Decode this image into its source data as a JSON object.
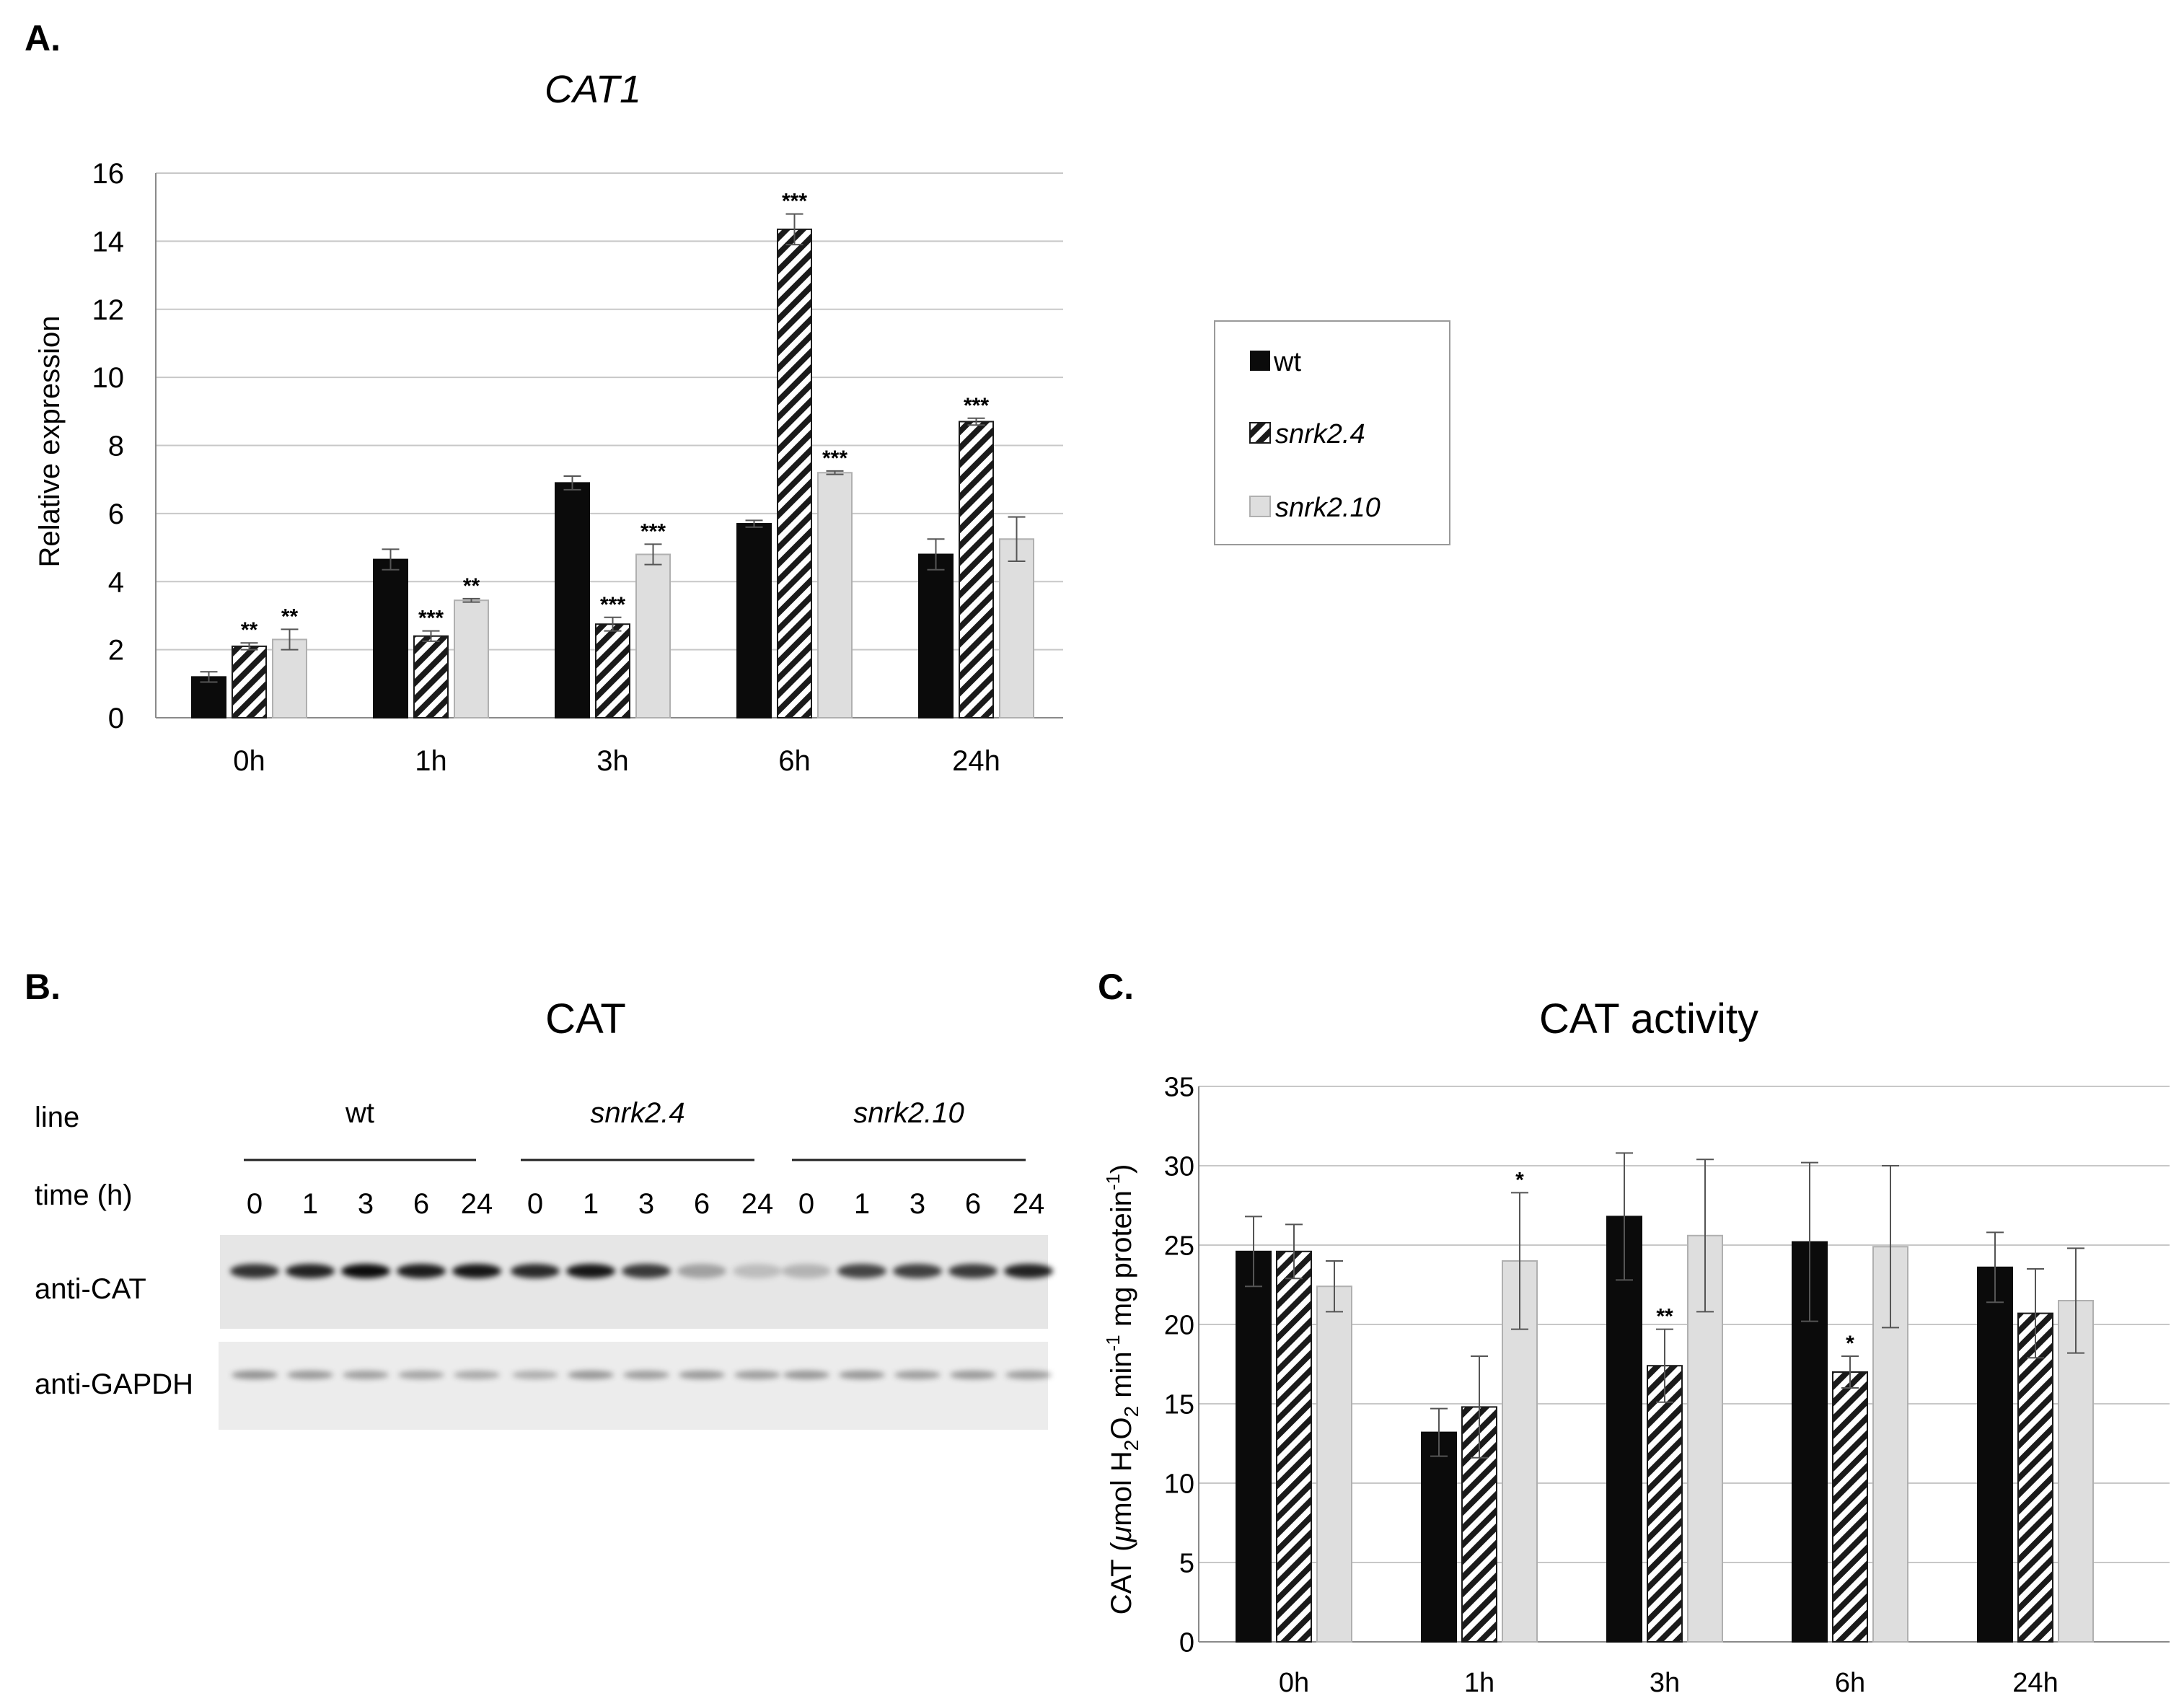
{
  "colors": {
    "wt": "#0b0b0b",
    "snrk24_stripe": "#1a1a1a",
    "snrk210": "#dedede",
    "grid": "#c8c8c8",
    "axis": "#8a8a8a",
    "blot_bg": "#e6e6e6"
  },
  "panels": {
    "a_label": "A.",
    "b_label": "B.",
    "c_label": "C."
  },
  "legend": {
    "items": [
      {
        "key": "wt",
        "label": "wt"
      },
      {
        "key": "snrk24",
        "label": "snrk2.4"
      },
      {
        "key": "snrk210",
        "label": "snrk2.10"
      }
    ]
  },
  "chart_data": [
    {
      "id": "A",
      "type": "bar",
      "title": "CAT1",
      "xlabel": "",
      "ylabel": "Relative expression",
      "ylim": [
        0,
        16
      ],
      "yticks": [
        0,
        2,
        4,
        6,
        8,
        10,
        12,
        14,
        16
      ],
      "categories": [
        "0h",
        "1h",
        "3h",
        "6h",
        "24h"
      ],
      "series": [
        {
          "name": "wt",
          "values": [
            1.2,
            4.65,
            6.9,
            5.7,
            4.8
          ],
          "errors": [
            0.15,
            0.3,
            0.2,
            0.1,
            0.45
          ],
          "sig": [
            "",
            "",
            "",
            "",
            ""
          ]
        },
        {
          "name": "snrk2.4",
          "values": [
            2.1,
            2.4,
            2.75,
            14.35,
            8.7
          ],
          "errors": [
            0.1,
            0.15,
            0.2,
            0.45,
            0.1
          ],
          "sig": [
            "**",
            "***",
            "***",
            "***",
            "***"
          ]
        },
        {
          "name": "snrk2.10",
          "values": [
            2.3,
            3.45,
            4.8,
            7.2,
            5.25
          ],
          "errors": [
            0.3,
            0.05,
            0.3,
            0.05,
            0.65
          ],
          "sig": [
            "**",
            "**",
            "***",
            "***",
            ""
          ]
        }
      ]
    },
    {
      "id": "C",
      "type": "bar",
      "title": "CAT activity",
      "xlabel": "",
      "ylabel": "CAT (μmol H2O2 min-1 mg protein-1)",
      "ylim": [
        0,
        35
      ],
      "yticks": [
        0,
        5,
        10,
        15,
        20,
        25,
        30,
        35
      ],
      "categories": [
        "0h",
        "1h",
        "3h",
        "6h",
        "24h"
      ],
      "series": [
        {
          "name": "wt",
          "values": [
            24.6,
            13.2,
            26.8,
            25.2,
            23.6
          ],
          "errors": [
            2.2,
            1.5,
            4.0,
            5.0,
            2.2
          ],
          "sig": [
            "",
            "",
            "",
            "",
            ""
          ]
        },
        {
          "name": "snrk2.4",
          "values": [
            24.6,
            14.8,
            17.4,
            17.0,
            20.7
          ],
          "errors": [
            1.7,
            3.2,
            2.3,
            1.0,
            2.8
          ],
          "sig": [
            "",
            "",
            "**",
            "*",
            ""
          ]
        },
        {
          "name": "snrk2.10",
          "values": [
            22.4,
            24.0,
            25.6,
            24.9,
            21.5
          ],
          "errors": [
            1.6,
            4.3,
            4.8,
            5.1,
            3.3
          ],
          "sig": [
            "",
            "*",
            "",
            "",
            ""
          ]
        }
      ]
    }
  ],
  "blot": {
    "title": "CAT",
    "line_label": "line",
    "time_label": "time (h)",
    "groups": [
      {
        "name": "wt",
        "italic": false,
        "times": [
          "0",
          "1",
          "3",
          "6",
          "24"
        ],
        "cat_intensity": [
          0.78,
          0.85,
          0.95,
          0.88,
          0.9
        ],
        "gapdh_intensity": [
          0.38,
          0.35,
          0.32,
          0.3,
          0.28
        ]
      },
      {
        "name": "snrk2.4",
        "italic": true,
        "times": [
          "0",
          "1",
          "3",
          "6",
          "24"
        ],
        "cat_intensity": [
          0.82,
          0.9,
          0.75,
          0.3,
          0.18
        ],
        "gapdh_intensity": [
          0.26,
          0.36,
          0.33,
          0.35,
          0.33
        ]
      },
      {
        "name": "snrk2.10",
        "italic": true,
        "times": [
          "0",
          "1",
          "3",
          "6",
          "24"
        ],
        "cat_intensity": [
          0.22,
          0.7,
          0.72,
          0.75,
          0.85
        ],
        "gapdh_intensity": [
          0.36,
          0.36,
          0.33,
          0.35,
          0.33
        ]
      }
    ],
    "rows": [
      {
        "key": "cat",
        "label": "anti-CAT"
      },
      {
        "key": "gapdh",
        "label": "anti-GAPDH"
      }
    ]
  }
}
